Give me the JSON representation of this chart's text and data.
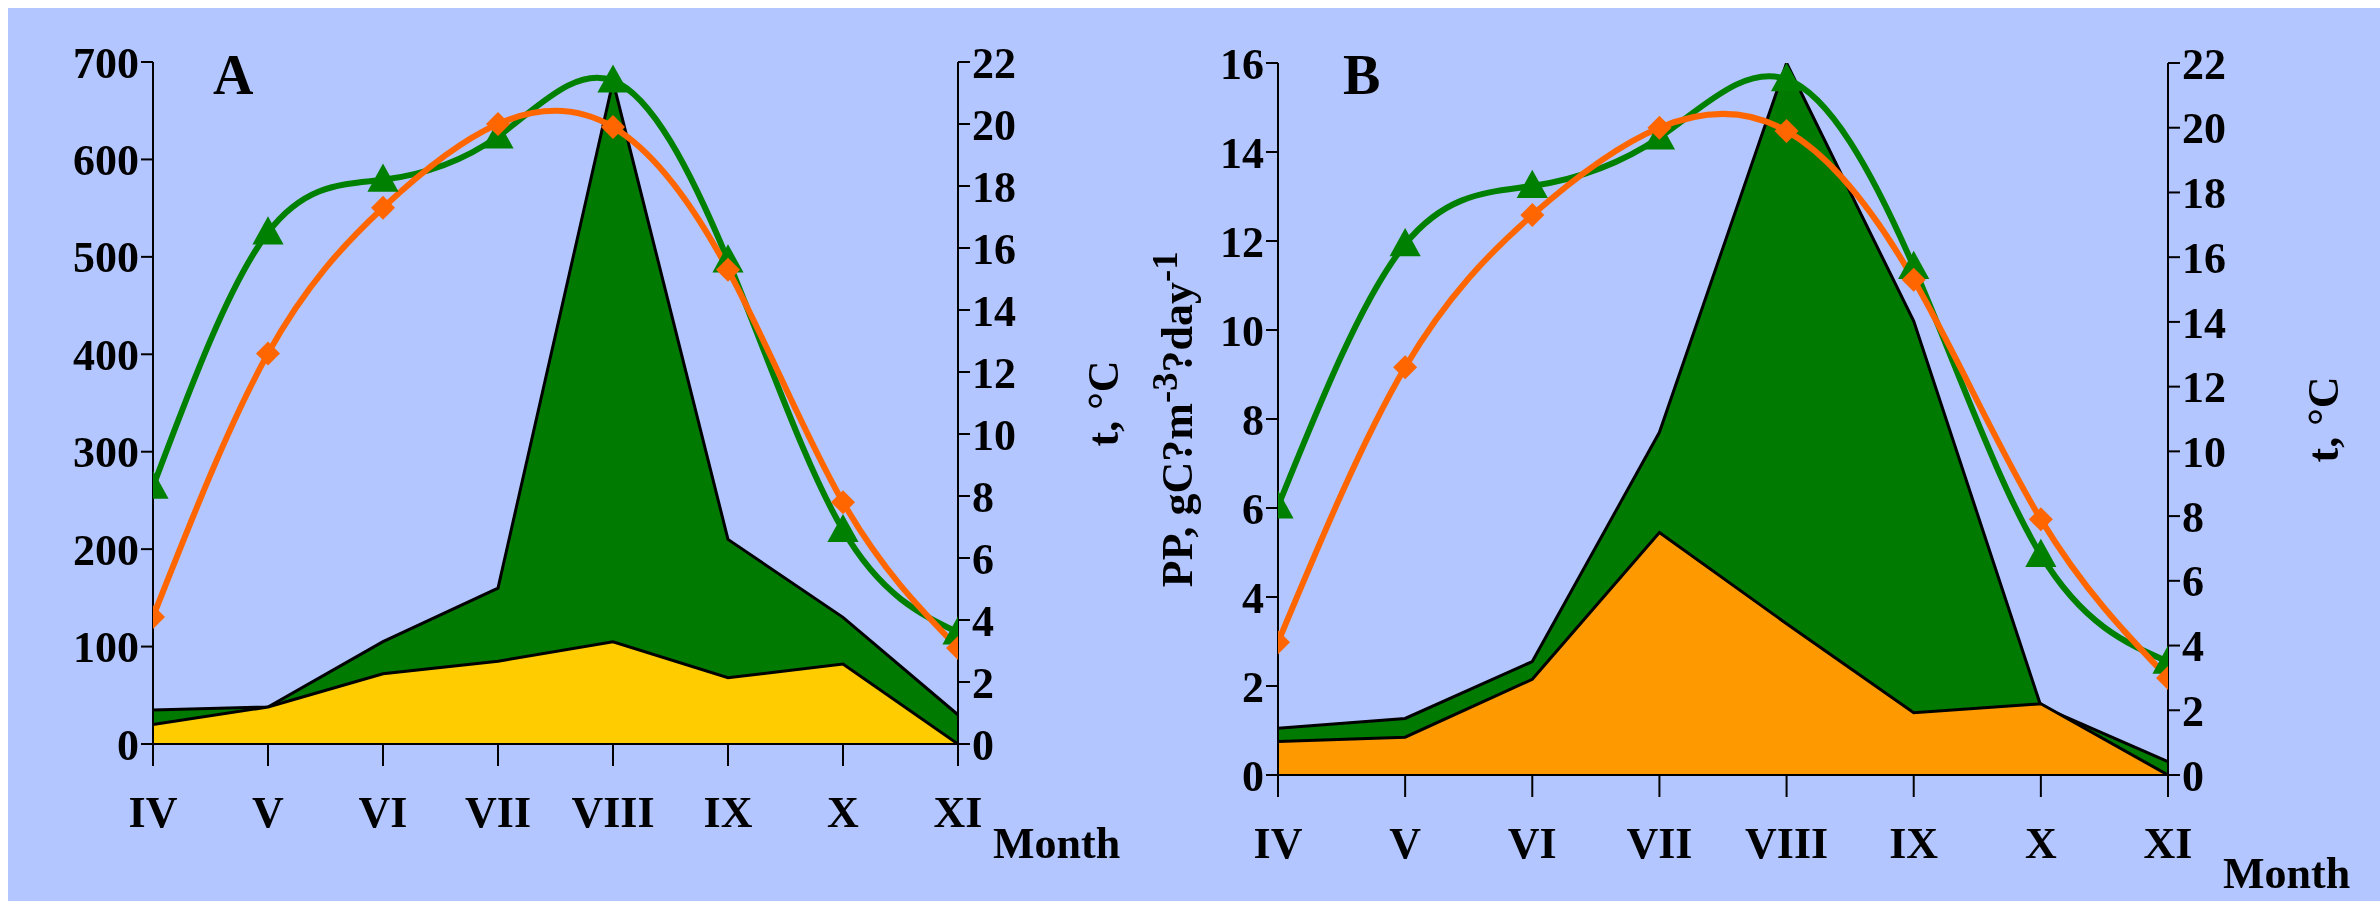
{
  "chart_data": [
    {
      "type": "area",
      "title": "A",
      "categories": [
        "IV",
        "V",
        "VI",
        "VII",
        "VIII",
        "IX",
        "X",
        "XI"
      ],
      "xlabel": "Month",
      "y2label": "t, °C",
      "ylim": [
        0,
        700
      ],
      "yticks": [
        0,
        100,
        200,
        300,
        400,
        500,
        600,
        700
      ],
      "y2lim": [
        0,
        22
      ],
      "y2ticks": [
        0,
        2,
        4,
        6,
        8,
        10,
        12,
        14,
        16,
        18,
        20,
        22
      ],
      "grid": false,
      "legend": false,
      "series": [
        {
          "color": "#007a00",
          "values": [
            35,
            38,
            105,
            160,
            680,
            210,
            130,
            30
          ]
        },
        {
          "color": "#ffcc00",
          "values": [
            20,
            38,
            72,
            85,
            105,
            68,
            82,
            0
          ]
        },
        {
          "type": "line",
          "axis": "y2",
          "color": "#008000",
          "marker": "triangle",
          "values": [
            8.3,
            16.5,
            18.2,
            19.6,
            21.4,
            15.6,
            6.9,
            3.6
          ]
        },
        {
          "type": "line",
          "axis": "y2",
          "color": "#ff6600",
          "marker": "diamond",
          "values": [
            4.1,
            12.6,
            17.3,
            20.0,
            19.9,
            15.3,
            7.8,
            3.1
          ]
        }
      ]
    },
    {
      "type": "area",
      "title": "B",
      "categories": [
        "IV",
        "V",
        "VI",
        "VII",
        "VIII",
        "IX",
        "X",
        "XI"
      ],
      "xlabel": "Month",
      "ylabel": "PP, gC?m$^{-3}$?day$^{-1}$",
      "y2label": "t, °C",
      "ylim": [
        0,
        16
      ],
      "yticks": [
        0,
        2,
        4,
        6,
        8,
        10,
        12,
        14,
        16
      ],
      "y2lim": [
        0,
        22
      ],
      "y2ticks": [
        0,
        2,
        4,
        6,
        8,
        10,
        12,
        14,
        16,
        18,
        20,
        22
      ],
      "grid": false,
      "legend": false,
      "series": [
        {
          "color": "#007a00",
          "values": [
            1.05,
            1.27,
            2.55,
            7.7,
            16.0,
            10.2,
            1.55,
            0.3
          ]
        },
        {
          "color": "#ff9900",
          "values": [
            0.75,
            0.85,
            2.15,
            5.45,
            3.4,
            1.4,
            1.6,
            0
          ]
        },
        {
          "type": "line",
          "axis": "y2",
          "color": "#008000",
          "marker": "triangle",
          "values": [
            8.3,
            16.4,
            18.2,
            19.7,
            21.5,
            15.7,
            6.8,
            3.5
          ]
        },
        {
          "type": "line",
          "axis": "y2",
          "color": "#ff6600",
          "marker": "diamond",
          "values": [
            4.1,
            12.6,
            17.3,
            20.0,
            19.9,
            15.3,
            7.9,
            3.0
          ]
        }
      ]
    }
  ]
}
